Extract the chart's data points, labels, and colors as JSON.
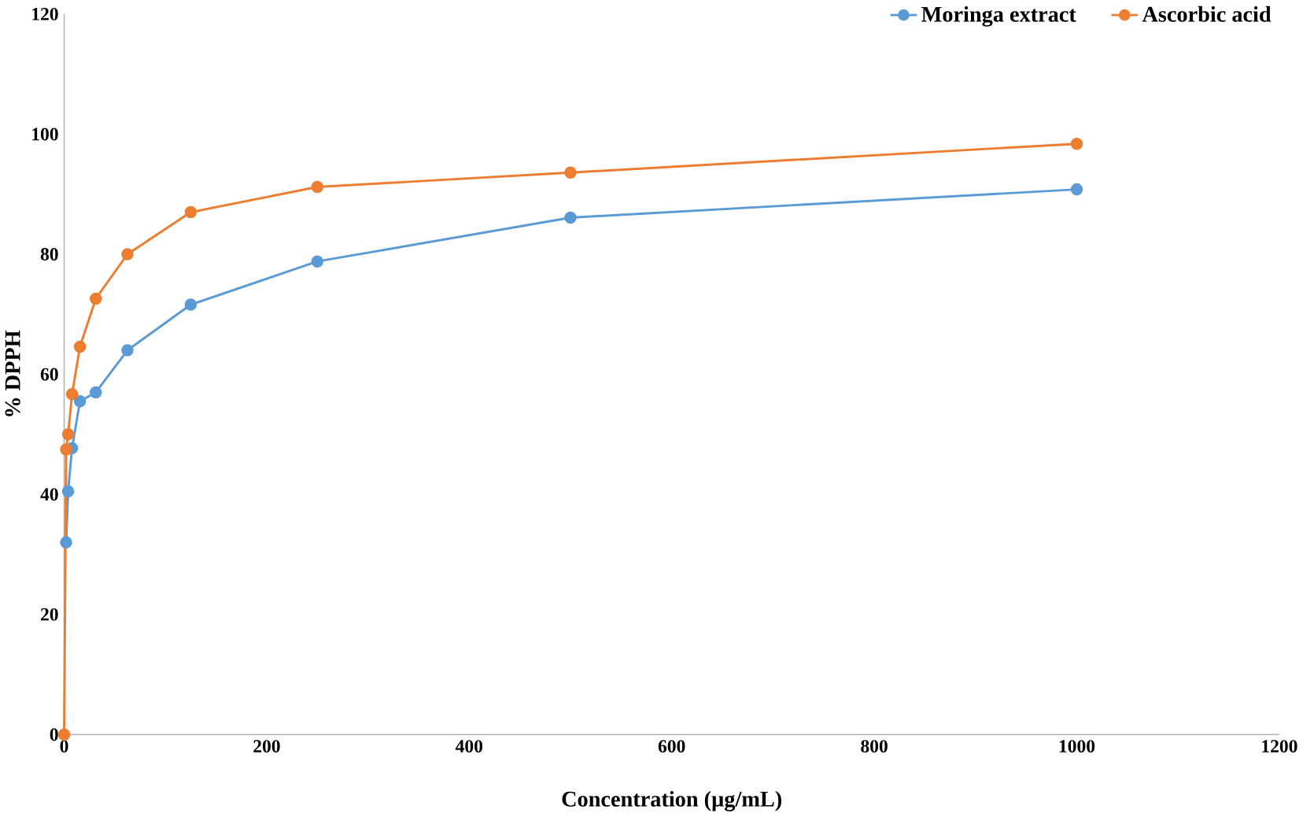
{
  "chart_data": {
    "type": "line",
    "xlabel": "Concentration (µg/mL)",
    "ylabel": "% DPPH",
    "xlim": [
      0,
      1200
    ],
    "xticks": [
      0,
      200,
      400,
      600,
      800,
      1000,
      1200
    ],
    "ylim": [
      0,
      120
    ],
    "yticks": [
      0,
      20,
      40,
      60,
      80,
      100,
      120
    ],
    "grid": false,
    "legend": "top right",
    "marker": "circle",
    "line_style": "solid",
    "series": [
      {
        "name": "Moringa extract",
        "color": "#5b9bd5",
        "x": [
          1.95,
          3.9,
          7.8,
          15.6,
          31.25,
          62.5,
          125,
          250,
          500,
          1000
        ],
        "values": [
          32,
          40.5,
          47.7,
          55.5,
          57,
          64,
          71.6,
          78.8,
          86.1,
          90.8
        ]
      },
      {
        "name": "Ascorbic acid",
        "color": "#ed7d31",
        "x": [
          0,
          1.95,
          3.9,
          7.8,
          15.6,
          31.25,
          62.5,
          125,
          250,
          500,
          1000
        ],
        "values": [
          0,
          47.5,
          50,
          56.7,
          64.6,
          72.6,
          80,
          87,
          91.2,
          93.6,
          98.4
        ]
      }
    ]
  }
}
